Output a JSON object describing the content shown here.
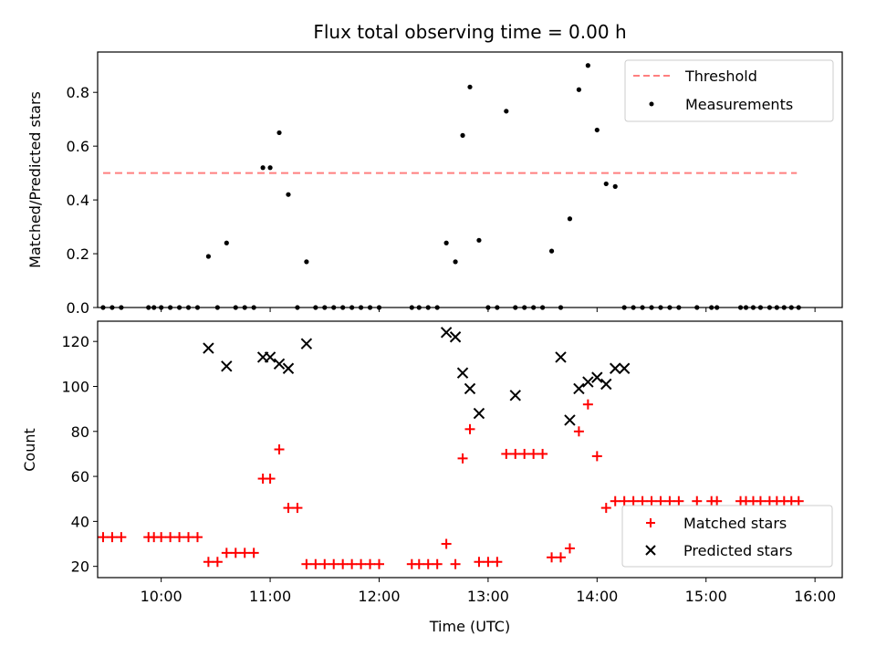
{
  "chart_data": [
    {
      "type": "scatter",
      "title": "Flux total observing time = 0.00 h",
      "xlabel": "",
      "ylabel": "Matched/Predicted stars",
      "xlim": [
        "09:25",
        "16:15"
      ],
      "ylim": [
        0.0,
        0.95
      ],
      "yticks": [
        "0.0",
        "0.2",
        "0.4",
        "0.6",
        "0.8"
      ],
      "legend_position": "top-right",
      "series": [
        {
          "name": "Threshold",
          "style": "dashed-line",
          "color": "#ff7f7f",
          "x": [
            "09:28",
            "15:50"
          ],
          "y": [
            0.5,
            0.5
          ]
        },
        {
          "name": "Measurements",
          "style": "dot",
          "color": "#000000",
          "x": [
            "09:28",
            "09:33",
            "09:38",
            "09:53",
            "09:56",
            "10:00",
            "10:05",
            "10:10",
            "10:15",
            "10:20",
            "10:26",
            "10:31",
            "10:36",
            "10:41",
            "10:46",
            "10:51",
            "10:56",
            "11:00",
            "11:05",
            "11:10",
            "11:15",
            "11:20",
            "11:25",
            "11:30",
            "11:35",
            "11:40",
            "11:45",
            "11:50",
            "11:55",
            "12:00",
            "12:18",
            "12:22",
            "12:27",
            "12:32",
            "12:37",
            "12:42",
            "12:46",
            "12:50",
            "12:55",
            "13:00",
            "13:05",
            "13:10",
            "13:15",
            "13:20",
            "13:25",
            "13:30",
            "13:35",
            "13:40",
            "13:45",
            "13:50",
            "13:55",
            "14:00",
            "14:05",
            "14:10",
            "14:15",
            "14:20",
            "14:25",
            "14:30",
            "14:35",
            "14:40",
            "14:45",
            "14:55",
            "15:03",
            "15:06",
            "15:19",
            "15:22",
            "15:26",
            "15:30",
            "15:35",
            "15:39",
            "15:43",
            "15:47",
            "15:51"
          ],
          "y": [
            0.0,
            0.0,
            0.0,
            0.0,
            0.0,
            0.0,
            0.0,
            0.0,
            0.0,
            0.0,
            0.19,
            0.0,
            0.24,
            0.0,
            0.0,
            0.0,
            0.52,
            0.52,
            0.65,
            0.42,
            0.0,
            0.17,
            0.0,
            0.0,
            0.0,
            0.0,
            0.0,
            0.0,
            0.0,
            0.0,
            0.0,
            0.0,
            0.0,
            0.0,
            0.24,
            0.17,
            0.64,
            0.82,
            0.25,
            0.0,
            0.0,
            0.73,
            0.0,
            0.0,
            0.0,
            0.0,
            0.21,
            0.0,
            0.33,
            0.81,
            0.9,
            0.66,
            0.46,
            0.45,
            0.0,
            0.0,
            0.0,
            0.0,
            0.0,
            0.0,
            0.0,
            0.0,
            0.0,
            0.0,
            0.0,
            0.0,
            0.0,
            0.0,
            0.0,
            0.0,
            0.0,
            0.0,
            0.0
          ]
        }
      ]
    },
    {
      "type": "scatter",
      "title": "",
      "xlabel": "Time (UTC)",
      "ylabel": "Count",
      "xlim": [
        "09:25",
        "16:15"
      ],
      "ylim": [
        15,
        129
      ],
      "xticks": [
        "10:00",
        "11:00",
        "12:00",
        "13:00",
        "14:00",
        "15:00",
        "16:00"
      ],
      "yticks": [
        "20",
        "40",
        "60",
        "80",
        "100",
        "120"
      ],
      "legend_position": "lower-right",
      "series": [
        {
          "name": "Matched stars",
          "marker": "plus",
          "color": "#ff0000",
          "x": [
            "09:28",
            "09:33",
            "09:38",
            "09:53",
            "09:56",
            "10:00",
            "10:05",
            "10:10",
            "10:15",
            "10:20",
            "10:26",
            "10:31",
            "10:36",
            "10:41",
            "10:46",
            "10:51",
            "10:56",
            "11:00",
            "11:05",
            "11:10",
            "11:15",
            "11:20",
            "11:25",
            "11:30",
            "11:35",
            "11:40",
            "11:45",
            "11:50",
            "11:55",
            "12:00",
            "12:18",
            "12:22",
            "12:27",
            "12:32",
            "12:37",
            "12:42",
            "12:46",
            "12:50",
            "12:55",
            "13:00",
            "13:05",
            "13:10",
            "13:15",
            "13:20",
            "13:25",
            "13:30",
            "13:35",
            "13:40",
            "13:45",
            "13:50",
            "13:55",
            "14:00",
            "14:05",
            "14:10",
            "14:15",
            "14:20",
            "14:25",
            "14:30",
            "14:35",
            "14:40",
            "14:45",
            "14:55",
            "15:03",
            "15:06",
            "15:19",
            "15:22",
            "15:26",
            "15:30",
            "15:35",
            "15:39",
            "15:43",
            "15:47",
            "15:51"
          ],
          "y": [
            33,
            33,
            33,
            33,
            33,
            33,
            33,
            33,
            33,
            33,
            22,
            22,
            26,
            26,
            26,
            26,
            59,
            59,
            72,
            46,
            46,
            21,
            21,
            21,
            21,
            21,
            21,
            21,
            21,
            21,
            21,
            21,
            21,
            21,
            30,
            21,
            68,
            81,
            22,
            22,
            22,
            70,
            70,
            70,
            70,
            70,
            24,
            24,
            28,
            80,
            92,
            69,
            46,
            49,
            49,
            49,
            49,
            49,
            49,
            49,
            49,
            49,
            49,
            49,
            49,
            49,
            49,
            49,
            49,
            49,
            49,
            49,
            49
          ]
        },
        {
          "name": "Predicted stars",
          "marker": "x",
          "color": "#000000",
          "x": [
            "10:26",
            "10:36",
            "10:56",
            "11:00",
            "11:05",
            "11:10",
            "11:20",
            "12:37",
            "12:42",
            "12:46",
            "12:50",
            "12:55",
            "13:15",
            "13:40",
            "13:45",
            "13:50",
            "13:55",
            "14:00",
            "14:05",
            "14:10",
            "14:15"
          ],
          "y": [
            117,
            109,
            113,
            113,
            110,
            108,
            119,
            124,
            122,
            106,
            99,
            88,
            96,
            113,
            85,
            99,
            102,
            104,
            101,
            108,
            108
          ]
        }
      ]
    }
  ]
}
